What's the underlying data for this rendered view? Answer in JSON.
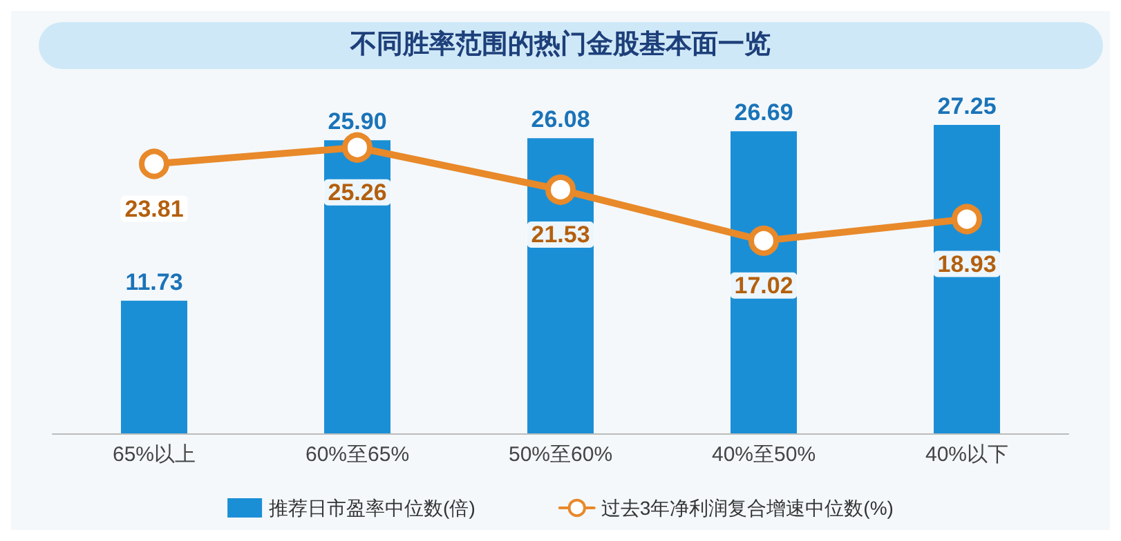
{
  "chart_data": {
    "type": "bar",
    "title": "不同胜率范围的热门金股基本面一览",
    "categories": [
      "65%以上",
      "60%至65%",
      "50%至60%",
      "40%至50%",
      "40%以下"
    ],
    "series": [
      {
        "name": "推荐日市盈率中位数(倍)",
        "color": "#1b8fd6",
        "values": [
          11.73,
          25.9,
          26.08,
          26.69,
          27.25
        ],
        "value_labels": [
          "11.73",
          "25.90",
          "26.08",
          "26.69",
          "27.25"
        ]
      },
      {
        "name": "过去3年净利润复合增速中位数(%)",
        "type": "line",
        "color": "#e8892a",
        "values": [
          23.81,
          25.26,
          21.53,
          17.02,
          18.93
        ],
        "value_labels": [
          "23.81",
          "25.26",
          "21.53",
          "17.02",
          "18.93"
        ]
      }
    ],
    "tick_labels": "x",
    "grid": false,
    "legend": "bottom",
    "marker": "circle",
    "line_style": "solid"
  }
}
